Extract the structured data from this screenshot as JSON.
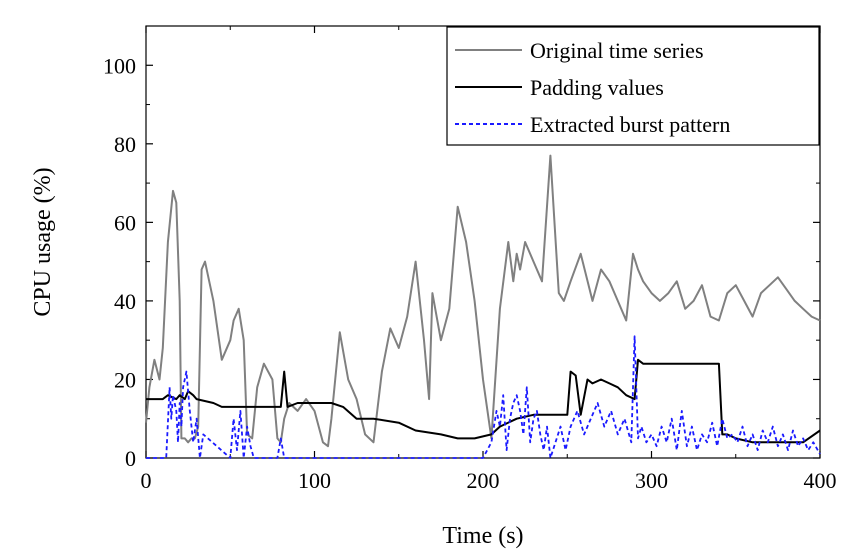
{
  "chart_data": {
    "type": "line",
    "xlabel": "Time (s)",
    "ylabel": "CPU usage (%)",
    "xlim": [
      0,
      400
    ],
    "ylim": [
      0,
      110
    ],
    "xticks": [
      0,
      100,
      200,
      300,
      400
    ],
    "yticks": [
      0,
      20,
      40,
      60,
      80,
      100
    ],
    "grid": false,
    "legend": "top-right",
    "series": [
      {
        "name": "Original time series",
        "color": "#808080",
        "dash": "solid",
        "x": [
          0,
          2,
          5,
          8,
          10,
          13,
          16,
          18,
          20,
          21,
          23,
          25,
          27,
          29,
          31,
          33,
          35,
          40,
          45,
          50,
          52,
          55,
          58,
          60,
          63,
          66,
          70,
          75,
          78,
          80,
          82,
          85,
          90,
          95,
          100,
          105,
          108,
          110,
          115,
          120,
          125,
          130,
          135,
          140,
          145,
          150,
          155,
          160,
          165,
          168,
          170,
          175,
          180,
          185,
          190,
          195,
          200,
          205,
          210,
          215,
          218,
          220,
          222,
          225,
          230,
          235,
          240,
          245,
          248,
          252,
          258,
          265,
          270,
          275,
          280,
          285,
          289,
          292,
          295,
          300,
          305,
          310,
          315,
          320,
          325,
          330,
          335,
          340,
          345,
          350,
          355,
          360,
          365,
          370,
          375,
          380,
          385,
          390,
          395,
          400
        ],
        "y": [
          9,
          18,
          25,
          20,
          28,
          55,
          68,
          65,
          40,
          5,
          5,
          4,
          5,
          5,
          8,
          48,
          50,
          40,
          25,
          30,
          35,
          38,
          30,
          6,
          5,
          18,
          24,
          20,
          5,
          4,
          10,
          14,
          12,
          15,
          12,
          4,
          3,
          10,
          32,
          20,
          15,
          6,
          4,
          22,
          33,
          28,
          36,
          50,
          30,
          15,
          42,
          30,
          38,
          64,
          55,
          40,
          20,
          5,
          38,
          55,
          45,
          52,
          48,
          55,
          50,
          45,
          77,
          42,
          40,
          45,
          52,
          40,
          48,
          45,
          40,
          35,
          52,
          48,
          45,
          42,
          40,
          42,
          45,
          38,
          40,
          44,
          36,
          35,
          42,
          44,
          40,
          36,
          42,
          44,
          46,
          43,
          40,
          38,
          36,
          35
        ]
      },
      {
        "name": "Padding values",
        "color": "#000000",
        "dash": "solid",
        "x": [
          0,
          10,
          13,
          18,
          20,
          23,
          25,
          28,
          30,
          40,
          45,
          50,
          70,
          80,
          82,
          84,
          90,
          110,
          117,
          125,
          135,
          150,
          160,
          175,
          185,
          195,
          205,
          210,
          220,
          230,
          240,
          250,
          252,
          255,
          258,
          262,
          265,
          270,
          275,
          280,
          285,
          290,
          292,
          295,
          300,
          340,
          342,
          345,
          350,
          360,
          370,
          380,
          390,
          400
        ],
        "y": [
          15,
          15,
          16,
          15,
          16,
          15,
          17,
          16,
          15,
          14,
          13,
          13,
          13,
          13,
          22,
          13,
          14,
          14,
          13,
          10,
          10,
          9,
          7,
          6,
          5,
          5,
          6,
          8,
          10,
          11,
          11,
          11,
          22,
          21,
          11,
          20,
          19,
          20,
          19,
          18,
          16,
          15,
          25,
          24,
          24,
          24,
          6,
          6,
          5,
          4,
          4,
          4,
          4,
          7
        ]
      },
      {
        "name": "Extracted burst pattern",
        "color": "#1a1aff",
        "dash": "dashed",
        "x": [
          0,
          12,
          14,
          15,
          16,
          18,
          19,
          20,
          21,
          22,
          24,
          26,
          28,
          30,
          32,
          34,
          50,
          52,
          54,
          56,
          58,
          60,
          62,
          64,
          78,
          80,
          82,
          84,
          200,
          205,
          208,
          210,
          212,
          214,
          216,
          218,
          220,
          222,
          224,
          226,
          228,
          230,
          232,
          234,
          236,
          238,
          240,
          243,
          246,
          249,
          252,
          256,
          260,
          264,
          268,
          272,
          276,
          280,
          284,
          288,
          290,
          292,
          294,
          297,
          300,
          303,
          306,
          309,
          312,
          315,
          318,
          321,
          324,
          327,
          330,
          333,
          336,
          339,
          342,
          345,
          348,
          351,
          354,
          357,
          360,
          363,
          366,
          369,
          372,
          375,
          378,
          381,
          384,
          387,
          390,
          393,
          396,
          400
        ],
        "y": [
          0,
          0,
          18,
          10,
          16,
          12,
          4,
          14,
          8,
          18,
          22,
          12,
          4,
          10,
          0,
          6,
          0,
          10,
          2,
          12,
          0,
          8,
          3,
          0,
          0,
          5,
          0,
          0,
          0,
          4,
          12,
          8,
          16,
          2,
          10,
          14,
          16,
          12,
          6,
          18,
          4,
          10,
          12,
          6,
          2,
          8,
          0,
          4,
          8,
          2,
          8,
          12,
          6,
          10,
          14,
          8,
          12,
          6,
          10,
          4,
          31,
          5,
          8,
          4,
          6,
          3,
          8,
          4,
          10,
          2,
          12,
          3,
          8,
          2,
          6,
          4,
          9,
          3,
          10,
          5,
          6,
          4,
          8,
          3,
          6,
          2,
          7,
          4,
          8,
          3,
          6,
          2,
          7,
          3,
          5,
          2,
          4,
          1
        ]
      }
    ]
  }
}
